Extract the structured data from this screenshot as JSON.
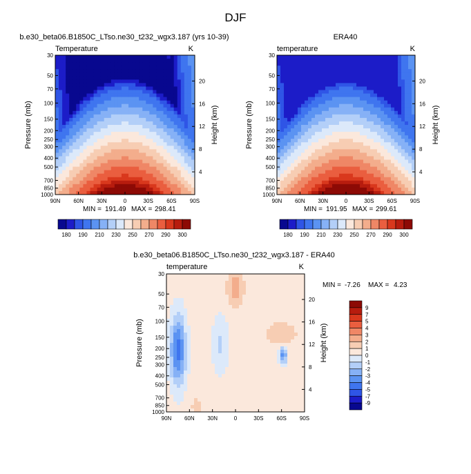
{
  "figure": {
    "title": "DJF"
  },
  "colors": {
    "abs_scale": [
      "#08088f",
      "#1c1cc8",
      "#2f55e6",
      "#3f75ef",
      "#5b93f2",
      "#86b1f6",
      "#b3cff8",
      "#dce9fa",
      "#fbe8dc",
      "#f7cdb3",
      "#f3ad8c",
      "#ef8766",
      "#ea5e3f",
      "#d9381d",
      "#b71c0e",
      "#8d0a05"
    ],
    "diff_scale": [
      "#08088f",
      "#1c1cc8",
      "#2f55e6",
      "#3f75ef",
      "#5b93f2",
      "#86b1f6",
      "#b3cff8",
      "#dce9fa",
      "#fbe8dc",
      "#f7cdb3",
      "#f3ad8c",
      "#ef8766",
      "#ea5e3f",
      "#d9381d",
      "#b71c0e",
      "#8d0a05"
    ]
  },
  "chart_data": [
    {
      "type": "heatmap",
      "panel": "model",
      "title": "b.e30_beta06.B1850C_LTso.ne30_t232_wgx3.187 (yrs 10-39)",
      "left_label": "Temperature",
      "right_label": "K",
      "xlabel": "",
      "ylabel": "Pressure (mb)",
      "ylabel_right": "Height (km)",
      "x_ticks": [
        "90N",
        "60N",
        "30N",
        "0",
        "30S",
        "60S",
        "90S"
      ],
      "y_ticks": [
        "30",
        "50",
        "70",
        "100",
        "150",
        "200",
        "250",
        "300",
        "400",
        "500",
        "700",
        "850",
        "1000"
      ],
      "y_ticks_right": [
        "20",
        "16",
        "12",
        "8",
        "4"
      ],
      "stats": {
        "min_label": "MIN =",
        "min": "191.49",
        "max_label": "MAX =",
        "max": "298.41"
      },
      "field_levels": [
        191.5,
        194,
        197,
        200,
        205,
        212,
        220,
        228,
        236,
        244,
        252,
        260,
        268,
        276,
        284,
        292,
        298
      ]
    },
    {
      "type": "heatmap",
      "panel": "obs",
      "title": "ERA40",
      "left_label": "temperature",
      "right_label": "K",
      "xlabel": "",
      "ylabel": "Pressure (mb)",
      "ylabel_right": "Height (km)",
      "x_ticks": [
        "90N",
        "60N",
        "30N",
        "0",
        "30S",
        "60S",
        "90S"
      ],
      "y_ticks": [
        "30",
        "50",
        "70",
        "100",
        "150",
        "200",
        "250",
        "300",
        "400",
        "500",
        "700",
        "850",
        "1000"
      ],
      "y_ticks_right": [
        "20",
        "16",
        "12",
        "8",
        "4"
      ],
      "stats": {
        "min_label": "MIN =",
        "min": "191.95",
        "max_label": "MAX =",
        "max": "299.61"
      }
    },
    {
      "type": "heatmap",
      "panel": "difference",
      "title": "b.e30_beta06.B1850C_LTso.ne30_t232_wgx3.187 - ERA40",
      "left_label": "temperature",
      "right_label": "K",
      "xlabel": "",
      "ylabel": "Pressure (mb)",
      "ylabel_right": "Height (km)",
      "x_ticks": [
        "90N",
        "60N",
        "30N",
        "0",
        "30S",
        "60S",
        "90S"
      ],
      "y_ticks": [
        "30",
        "50",
        "70",
        "100",
        "150",
        "200",
        "250",
        "300",
        "400",
        "500",
        "700",
        "850",
        "1000"
      ],
      "y_ticks_right": [
        "20",
        "16",
        "12",
        "8",
        "4"
      ],
      "stats": {
        "min_label": "MIN =",
        "min": "-7.26",
        "max_label": "MAX =",
        "max": "4.23"
      },
      "colorbar_levels": [
        "9",
        "7",
        "5",
        "4",
        "3",
        "2",
        "1",
        "0",
        "-1",
        "-2",
        "-3",
        "-4",
        "-5",
        "-7",
        "-9"
      ]
    }
  ],
  "abs_colorbar": {
    "labels": [
      "180",
      "190",
      "210",
      "230",
      "250",
      "270",
      "290",
      "300"
    ]
  }
}
